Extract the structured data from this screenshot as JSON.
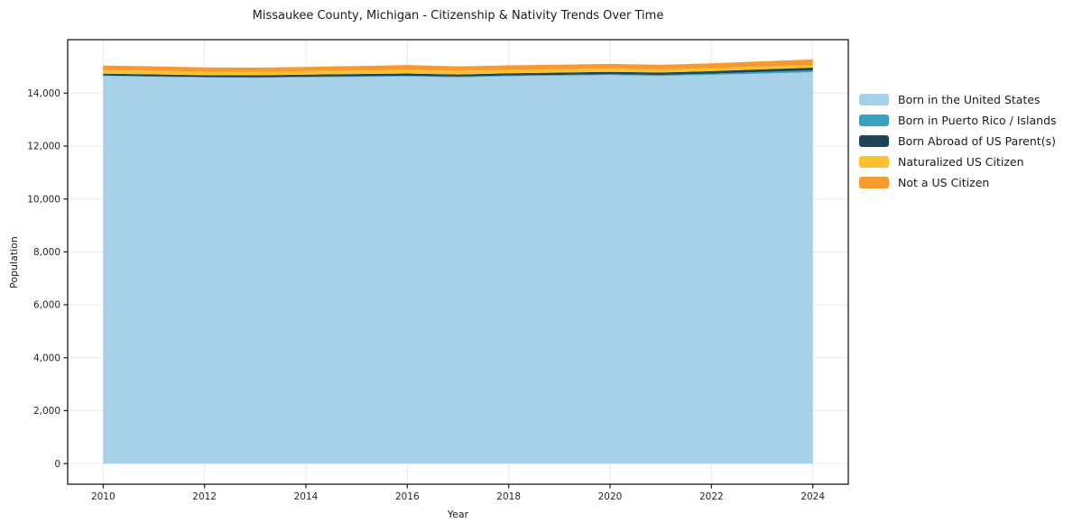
{
  "figure": {
    "title": "Missaukee County, Michigan - Citizenship & Nativity Trends Over Time",
    "xlabel": "Year",
    "ylabel": "Population"
  },
  "chart_data": {
    "type": "area",
    "stacked": true,
    "title": "Missaukee County, Michigan - Citizenship & Nativity Trends Over Time",
    "xlabel": "Year",
    "ylabel": "Population",
    "grid": true,
    "legend_position": "right-outside",
    "x": [
      2010,
      2011,
      2012,
      2013,
      2014,
      2015,
      2016,
      2017,
      2018,
      2019,
      2020,
      2021,
      2022,
      2023,
      2024
    ],
    "series": [
      {
        "name": "Born in the United States",
        "color": "#a6d1e8",
        "values": [
          14650,
          14620,
          14590,
          14580,
          14600,
          14615,
          14630,
          14600,
          14640,
          14660,
          14680,
          14650,
          14690,
          14740,
          14790
        ]
      },
      {
        "name": "Born in Puerto Rico / Islands",
        "color": "#3ba0bf",
        "values": [
          15,
          15,
          18,
          20,
          22,
          25,
          28,
          25,
          30,
          32,
          35,
          40,
          50,
          60,
          70
        ]
      },
      {
        "name": "Born Abroad of US Parent(s)",
        "color": "#1f4554",
        "values": [
          70,
          72,
          70,
          75,
          78,
          80,
          85,
          80,
          82,
          85,
          90,
          88,
          92,
          98,
          105
        ]
      },
      {
        "name": "Naturalized US Citizen",
        "color": "#fdc02f",
        "values": [
          140,
          138,
          135,
          132,
          130,
          135,
          140,
          135,
          130,
          128,
          125,
          118,
          112,
          108,
          100
        ]
      },
      {
        "name": "Not a US Citizen",
        "color": "#f6992e",
        "values": [
          170,
          165,
          160,
          158,
          162,
          170,
          180,
          172,
          168,
          170,
          175,
          172,
          180,
          195,
          210
        ]
      }
    ],
    "xticks": [
      2010,
      2012,
      2014,
      2016,
      2018,
      2020,
      2022,
      2024
    ],
    "yticks": [
      0,
      2000,
      4000,
      6000,
      8000,
      10000,
      12000,
      14000
    ],
    "ytick_labels": [
      "0",
      "2,000",
      "4,000",
      "6,000",
      "8,000",
      "10,000",
      "12,000",
      "14,000"
    ],
    "xlim": [
      2009.3,
      2024.7
    ],
    "ylim": [
      -780,
      16020
    ],
    "colors": {
      "grid": "#e9e9e9",
      "spine": "#1a1a1a",
      "tick_label": "#262626",
      "background": "#ffffff"
    }
  }
}
